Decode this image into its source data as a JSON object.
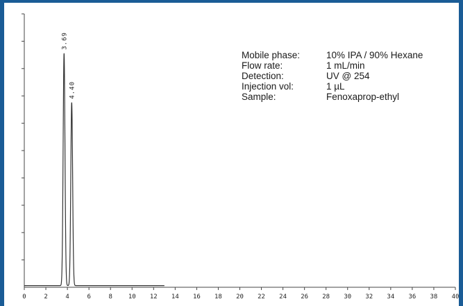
{
  "colors": {
    "frame_border": "#1a5c96",
    "background": "#ffffff",
    "trace": "#333333",
    "axis": "#444444"
  },
  "conditions": [
    {
      "label": "Mobile phase:",
      "value": "10% IPA / 90% Hexane"
    },
    {
      "label": "Flow rate:",
      "value": "1 mL/min"
    },
    {
      "label": "Detection:",
      "value": "UV @ 254"
    },
    {
      "label": "Injection vol:",
      "value": "1 µL"
    },
    {
      "label": "Sample:",
      "value": "Fenoxaprop-ethyl"
    }
  ],
  "chart_data": {
    "type": "line",
    "title": "",
    "xlabel": "",
    "ylabel": "",
    "xlim": [
      0,
      40
    ],
    "ylim": [
      0,
      100
    ],
    "x_ticks": [
      0,
      2,
      4,
      6,
      8,
      10,
      12,
      14,
      16,
      18,
      20,
      22,
      24,
      26,
      28,
      30,
      32,
      34,
      36,
      38,
      40
    ],
    "y_tick_count": 10,
    "grid": false,
    "trace_end": 13,
    "peaks": [
      {
        "label": "3.69",
        "retention_time": 3.69,
        "height": 85,
        "width": 0.12
      },
      {
        "label": "4.40",
        "retention_time": 4.4,
        "height": 67,
        "width": 0.12
      }
    ]
  }
}
